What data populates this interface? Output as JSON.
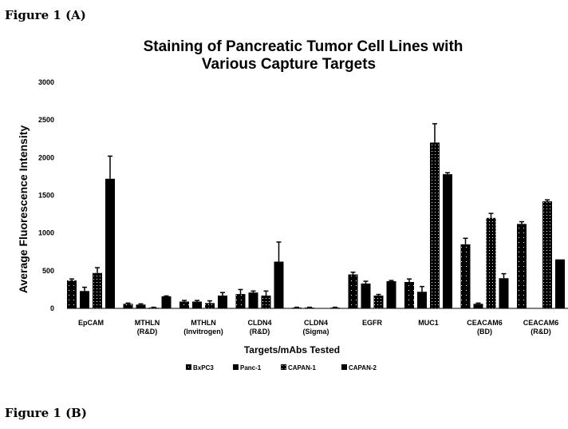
{
  "figure_a_label": "Figure 1 (A)",
  "figure_b_label": "Figure 1 (B)",
  "chart_data": {
    "type": "bar",
    "title": "Staining of Pancreatic Tumor Cell Lines with Various Capture Targets",
    "title_lines": [
      "Staining of Pancreatic Tumor Cell Lines with",
      "Various Capture Targets"
    ],
    "xlabel": "Targets/mAbs Tested",
    "ylabel": "Average Fluorescence Intensity",
    "ylim": [
      0,
      3000
    ],
    "yticks": [
      0,
      500,
      1000,
      1500,
      2000,
      2500,
      3000
    ],
    "ytick_labels": [
      "0",
      "500",
      "1000",
      "1500",
      "2000",
      "2500",
      "3000"
    ],
    "categories": [
      [
        "EpCAM",
        ""
      ],
      [
        "MTHLN",
        "(R&D)"
      ],
      [
        "MTHLN",
        "(Invitrogen)"
      ],
      [
        "CLDN4",
        "(R&D)"
      ],
      [
        "CLDN4",
        "(Sigma)"
      ],
      [
        "EGFR",
        ""
      ],
      [
        "MUC1",
        ""
      ],
      [
        "CEACAM6",
        "(BD)"
      ],
      [
        "CEACAM6",
        "(R&D)"
      ]
    ],
    "legend_position": "bottom",
    "series": [
      {
        "name": "BxPC3",
        "values": [
          370,
          60,
          90,
          190,
          10,
          450,
          350,
          850,
          1120
        ],
        "errors": [
          20,
          10,
          15,
          60,
          5,
          30,
          40,
          80,
          30
        ]
      },
      {
        "name": "Panc-1",
        "values": [
          230,
          50,
          90,
          210,
          10,
          330,
          220,
          60,
          0
        ],
        "errors": [
          50,
          10,
          15,
          20,
          5,
          30,
          70,
          10,
          0
        ]
      },
      {
        "name": "CAPAN-1",
        "values": [
          470,
          10,
          70,
          170,
          0,
          170,
          2200,
          1200,
          1420
        ],
        "errors": [
          70,
          5,
          30,
          60,
          0,
          15,
          250,
          60,
          20
        ]
      },
      {
        "name": "CAPAN-2",
        "values": [
          1720,
          160,
          170,
          620,
          10,
          360,
          1780,
          400,
          650
        ],
        "errors": [
          300,
          5,
          40,
          260,
          5,
          10,
          20,
          60,
          0
        ]
      }
    ],
    "grid": false
  }
}
